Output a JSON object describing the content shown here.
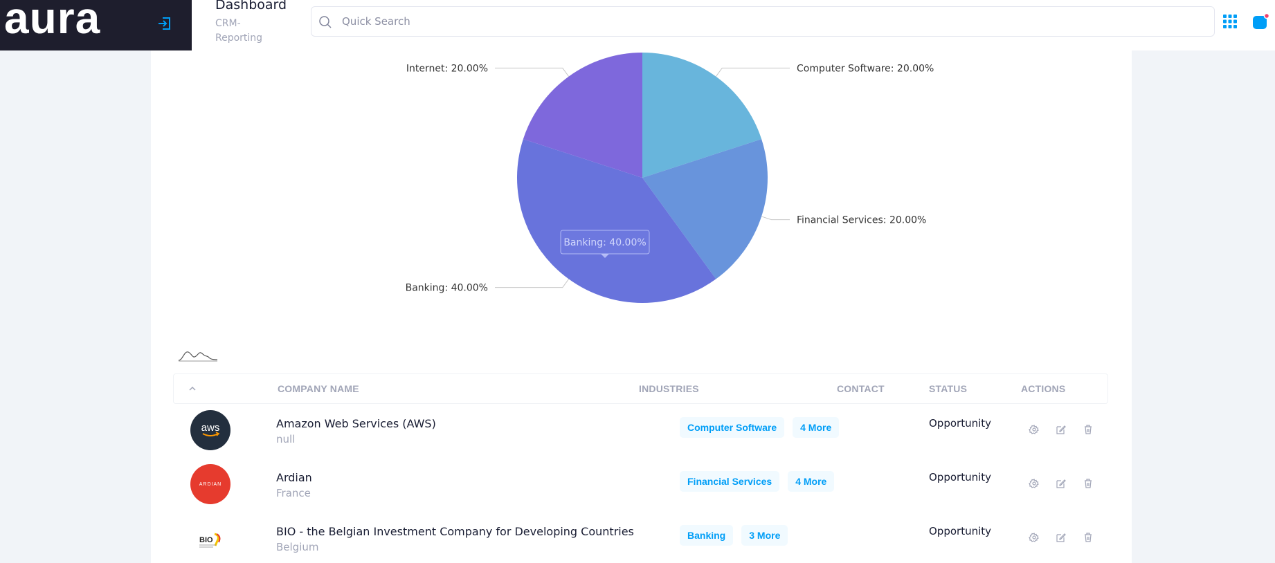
{
  "brand": {
    "logo_text": "aura"
  },
  "header": {
    "title": "Dashboard",
    "breadcrumb": "CRM-Reporting",
    "search_placeholder": "Quick Search"
  },
  "colors": {
    "accent": "#009ef7",
    "sidebar_bg": "#1e1e2d",
    "notification_dot": "#f1416c"
  },
  "chart_data": {
    "type": "pie",
    "title": "",
    "slices": [
      {
        "label": "Computer Software",
        "value": 20,
        "display": "Computer Software: 20.00%",
        "color": "#68b5dc"
      },
      {
        "label": "Financial Services",
        "value": 20,
        "display": "Financial Services: 20.00%",
        "color": "#6894dc"
      },
      {
        "label": "Banking",
        "value": 40,
        "display": "Banking: 40.00%",
        "color": "#6873dc"
      },
      {
        "label": "Internet",
        "value": 20,
        "display": "Internet: 20.00%",
        "color": "#7e68dc"
      }
    ],
    "tooltip": "Banking: 40.00%"
  },
  "table": {
    "columns": [
      "COMPANY NAME",
      "INDUSTRIES",
      "CONTACT",
      "STATUS",
      "ACTIONS"
    ],
    "rows": [
      {
        "name": "Amazon Web Services (AWS)",
        "country": "null",
        "logo": "aws",
        "industry": "Computer Software",
        "more": "4 More",
        "contact": "",
        "status": "Opportunity"
      },
      {
        "name": "Ardian",
        "country": "France",
        "logo": "ARDIAN",
        "industry": "Financial Services",
        "more": "4 More",
        "contact": "",
        "status": "Opportunity"
      },
      {
        "name": "BIO - the Belgian Investment Company for Developing Countries",
        "country": "Belgium",
        "logo": "BIO",
        "industry": "Banking",
        "more": "3 More",
        "contact": "",
        "status": "Opportunity"
      }
    ]
  }
}
